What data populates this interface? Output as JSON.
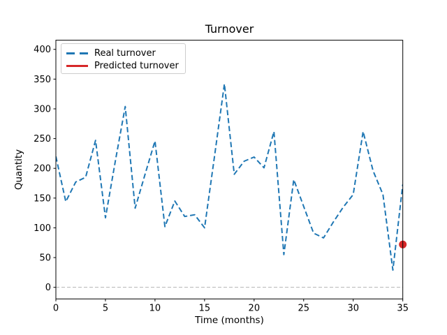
{
  "chart_data": {
    "type": "line",
    "title": "Turnover",
    "xlabel": "Time (months)",
    "ylabel": "Quantity",
    "xlim": [
      0,
      35
    ],
    "ylim": [
      -19.5,
      415.4
    ],
    "x_ticks": [
      0,
      5,
      10,
      15,
      20,
      25,
      30,
      35
    ],
    "y_ticks": [
      0,
      50,
      100,
      150,
      200,
      250,
      300,
      350,
      400
    ],
    "grid": false,
    "legend": {
      "position": "upper left",
      "items": [
        {
          "label": "Real turnover",
          "style": "dashed"
        },
        {
          "label": "Predicted turnover",
          "style": "solid"
        }
      ]
    },
    "series": [
      {
        "name": "Real turnover",
        "kind": "line",
        "line_style": "dashed",
        "color": "#1f77b4",
        "x": [
          0,
          1,
          2,
          3,
          4,
          5,
          6,
          7,
          8,
          9,
          10,
          11,
          12,
          13,
          14,
          15,
          16,
          17,
          18,
          19,
          20,
          21,
          22,
          23,
          24,
          25,
          26,
          27,
          28,
          29,
          30,
          31,
          32,
          33,
          34,
          35
        ],
        "values": [
          220,
          144,
          177,
          185,
          247,
          117,
          212,
          304,
          133,
          190,
          246,
          102,
          145,
          119,
          122,
          100,
          220,
          342,
          190,
          212,
          219,
          201,
          262,
          55,
          181,
          136,
          91,
          83,
          110,
          135,
          156,
          262,
          196,
          156,
          29,
          173
        ]
      },
      {
        "name": "Predicted turnover",
        "kind": "point",
        "marker": "circle",
        "color": "#d62728",
        "x": [
          35
        ],
        "values": [
          72
        ]
      }
    ],
    "reference_line": {
      "y": 0,
      "color": "#b2b2b2",
      "style": "dashed"
    },
    "axes_color": "#000000"
  }
}
